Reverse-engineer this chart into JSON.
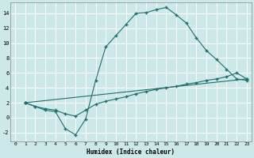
{
  "bg_color": "#cde8e8",
  "grid_color": "#b0d0d0",
  "line_color": "#1e6e6e",
  "marker": "+",
  "xlabel": "Humidex (Indice chaleur)",
  "xlim": [
    -0.5,
    23.5
  ],
  "ylim": [
    -3.2,
    15.5
  ],
  "xticks": [
    0,
    1,
    2,
    3,
    4,
    5,
    6,
    7,
    8,
    9,
    10,
    11,
    12,
    13,
    14,
    15,
    16,
    17,
    18,
    19,
    20,
    21,
    22,
    23
  ],
  "yticks": [
    -2,
    0,
    2,
    4,
    6,
    8,
    10,
    12,
    14
  ],
  "curve1_x": [
    1,
    2,
    3,
    4,
    5,
    6,
    7,
    8,
    9,
    10,
    11,
    12,
    13,
    14,
    15,
    16,
    17,
    18,
    19,
    20,
    21,
    22,
    23
  ],
  "curve1_y": [
    2.0,
    1.5,
    1.0,
    0.8,
    -1.5,
    -2.3,
    -0.2,
    5.0,
    9.5,
    11.0,
    12.5,
    14.0,
    14.1,
    14.5,
    14.8,
    13.8,
    12.7,
    10.7,
    9.0,
    7.8,
    6.5,
    5.2,
    5.0
  ],
  "curve2_x": [
    1,
    23
  ],
  "curve2_y": [
    2.0,
    5.2
  ],
  "curve3_x": [
    1,
    2,
    3,
    4,
    5,
    6,
    7,
    8,
    9,
    10,
    11,
    12,
    13,
    14,
    15,
    16,
    17,
    18,
    19,
    20,
    21,
    22,
    23
  ],
  "curve3_y": [
    2.0,
    1.5,
    1.2,
    1.0,
    0.5,
    0.2,
    1.0,
    1.8,
    2.2,
    2.5,
    2.8,
    3.2,
    3.5,
    3.8,
    4.0,
    4.2,
    4.5,
    4.7,
    5.0,
    5.2,
    5.5,
    6.0,
    5.2
  ]
}
